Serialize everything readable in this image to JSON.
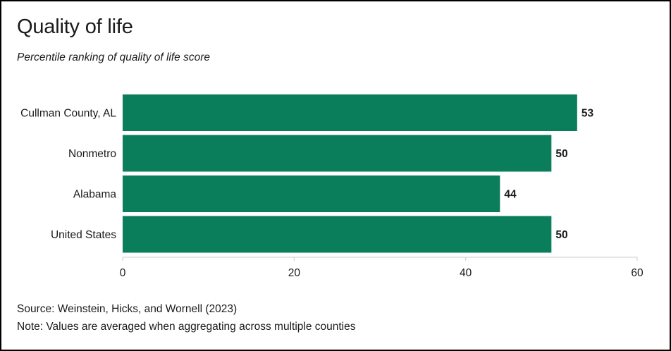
{
  "title": "Quality of life",
  "subtitle": "Percentile ranking of quality of life score",
  "source": "Source: Weinstein, Hicks, and Wornell (2023)",
  "note": "Note: Values are averaged when aggregating across multiple counties",
  "colors": {
    "bar": "#0a7d5a",
    "axis": "#cccccc",
    "text": "#1a1a1a"
  },
  "chart_data": {
    "type": "bar",
    "orientation": "horizontal",
    "categories": [
      "Cullman County, AL",
      "Nonmetro",
      "Alabama",
      "United States"
    ],
    "values": [
      53,
      50,
      44,
      50
    ],
    "xlim": [
      0,
      60
    ],
    "xticks": [
      0,
      20,
      40,
      60
    ],
    "grid": false,
    "title": "Quality of life",
    "xlabel": "",
    "ylabel": ""
  }
}
